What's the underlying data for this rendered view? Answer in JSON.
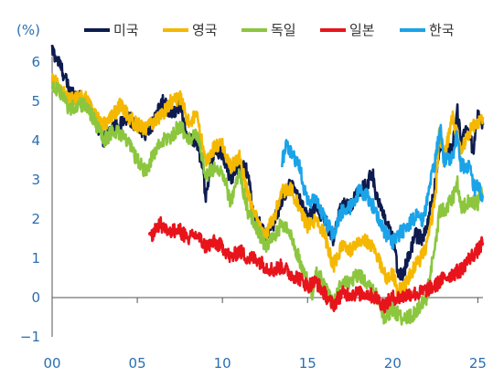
{
  "chart_data": {
    "type": "line",
    "unit_label": "(%)",
    "xlim": [
      2000,
      2025.3
    ],
    "ylim": [
      -1,
      6
    ],
    "x_ticks": [
      {
        "value": 2000,
        "label": "00"
      },
      {
        "value": 2005,
        "label": "05"
      },
      {
        "value": 2010,
        "label": "10"
      },
      {
        "value": 2015,
        "label": "15"
      },
      {
        "value": 2020,
        "label": "20"
      },
      {
        "value": 2025,
        "label": "25"
      }
    ],
    "y_ticks": [
      -1,
      0,
      1,
      2,
      3,
      4,
      5,
      6
    ],
    "grid": false,
    "legend_position": "top",
    "series": [
      {
        "name": "미국",
        "color": "#0d1b4f",
        "points": [
          [
            2000,
            6.3
          ],
          [
            2000.5,
            5.9
          ],
          [
            2001,
            5.3
          ],
          [
            2001.5,
            5.1
          ],
          [
            2002,
            5.0
          ],
          [
            2002.5,
            4.6
          ],
          [
            2003,
            4.0
          ],
          [
            2003.5,
            4.3
          ],
          [
            2004,
            4.4
          ],
          [
            2004.5,
            4.6
          ],
          [
            2005,
            4.3
          ],
          [
            2005.5,
            4.2
          ],
          [
            2006,
            4.5
          ],
          [
            2006.5,
            5.0
          ],
          [
            2007,
            4.7
          ],
          [
            2007.5,
            4.9
          ],
          [
            2008,
            4.0
          ],
          [
            2008.5,
            4.0
          ],
          [
            2008.9,
            3.2
          ],
          [
            2009,
            2.5
          ],
          [
            2009.3,
            3.3
          ],
          [
            2009.5,
            3.7
          ],
          [
            2010,
            3.7
          ],
          [
            2010.5,
            3.0
          ],
          [
            2011,
            3.4
          ],
          [
            2011.5,
            3.2
          ],
          [
            2011.8,
            2.1
          ],
          [
            2012,
            2.0
          ],
          [
            2012.5,
            1.6
          ],
          [
            2013,
            1.9
          ],
          [
            2013.5,
            2.5
          ],
          [
            2014,
            2.9
          ],
          [
            2014.5,
            2.5
          ],
          [
            2015,
            2.0
          ],
          [
            2015.5,
            2.3
          ],
          [
            2016,
            2.0
          ],
          [
            2016.5,
            1.5
          ],
          [
            2017,
            2.4
          ],
          [
            2017.5,
            2.3
          ],
          [
            2018,
            2.7
          ],
          [
            2018.5,
            2.9
          ],
          [
            2018.8,
            3.2
          ],
          [
            2019,
            2.7
          ],
          [
            2019.5,
            2.0
          ],
          [
            2019.8,
            1.7
          ],
          [
            2020,
            1.5
          ],
          [
            2020.3,
            0.7
          ],
          [
            2020.6,
            0.6
          ],
          [
            2021,
            1.1
          ],
          [
            2021.3,
            1.6
          ],
          [
            2021.8,
            1.5
          ],
          [
            2022,
            1.8
          ],
          [
            2022.5,
            2.9
          ],
          [
            2022.8,
            4.0
          ],
          [
            2023,
            3.6
          ],
          [
            2023.5,
            3.8
          ],
          [
            2023.8,
            4.8
          ],
          [
            2024,
            4.0
          ],
          [
            2024.5,
            4.3
          ],
          [
            2024.7,
            3.7
          ],
          [
            2025,
            4.6
          ],
          [
            2025.3,
            4.4
          ]
        ]
      },
      {
        "name": "영국",
        "color": "#f5b800",
        "points": [
          [
            2000,
            5.6
          ],
          [
            2000.5,
            5.3
          ],
          [
            2001,
            5.0
          ],
          [
            2001.5,
            5.1
          ],
          [
            2002,
            5.1
          ],
          [
            2002.5,
            4.7
          ],
          [
            2003,
            4.4
          ],
          [
            2003.5,
            4.6
          ],
          [
            2004,
            4.9
          ],
          [
            2004.5,
            4.6
          ],
          [
            2005,
            4.4
          ],
          [
            2005.5,
            4.3
          ],
          [
            2006,
            4.5
          ],
          [
            2006.5,
            4.7
          ],
          [
            2007,
            5.0
          ],
          [
            2007.5,
            5.1
          ],
          [
            2008,
            4.5
          ],
          [
            2008.5,
            4.6
          ],
          [
            2009,
            3.5
          ],
          [
            2009.5,
            3.8
          ],
          [
            2010,
            3.9
          ],
          [
            2010.5,
            3.3
          ],
          [
            2011,
            3.6
          ],
          [
            2011.5,
            2.6
          ],
          [
            2012,
            2.0
          ],
          [
            2012.5,
            1.6
          ],
          [
            2013,
            2.0
          ],
          [
            2013.5,
            2.7
          ],
          [
            2014,
            2.8
          ],
          [
            2014.5,
            2.3
          ],
          [
            2015,
            1.8
          ],
          [
            2015.5,
            2.0
          ],
          [
            2016,
            1.6
          ],
          [
            2016.5,
            0.8
          ],
          [
            2017,
            1.3
          ],
          [
            2017.5,
            1.2
          ],
          [
            2018,
            1.5
          ],
          [
            2018.5,
            1.4
          ],
          [
            2019,
            1.2
          ],
          [
            2019.6,
            0.5
          ],
          [
            2020,
            0.6
          ],
          [
            2020.3,
            0.2
          ],
          [
            2020.6,
            0.2
          ],
          [
            2021,
            0.6
          ],
          [
            2021.5,
            0.9
          ],
          [
            2022,
            1.3
          ],
          [
            2022.5,
            2.5
          ],
          [
            2022.75,
            4.3
          ],
          [
            2023,
            3.5
          ],
          [
            2023.5,
            4.6
          ],
          [
            2024,
            3.8
          ],
          [
            2024.5,
            4.2
          ],
          [
            2025,
            4.5
          ],
          [
            2025.3,
            4.6
          ]
        ]
      },
      {
        "name": "독일",
        "color": "#8cc63f",
        "points": [
          [
            2000,
            5.4
          ],
          [
            2000.5,
            5.2
          ],
          [
            2001,
            4.8
          ],
          [
            2001.5,
            4.9
          ],
          [
            2002,
            4.9
          ],
          [
            2002.5,
            4.5
          ],
          [
            2003,
            4.0
          ],
          [
            2003.5,
            4.2
          ],
          [
            2004,
            4.2
          ],
          [
            2004.5,
            3.9
          ],
          [
            2005,
            3.5
          ],
          [
            2005.5,
            3.2
          ],
          [
            2006,
            3.7
          ],
          [
            2006.5,
            4.0
          ],
          [
            2007,
            4.1
          ],
          [
            2007.5,
            4.4
          ],
          [
            2008,
            4.0
          ],
          [
            2008.5,
            4.2
          ],
          [
            2009,
            3.1
          ],
          [
            2009.5,
            3.3
          ],
          [
            2010,
            3.2
          ],
          [
            2010.5,
            2.4
          ],
          [
            2011,
            3.2
          ],
          [
            2011.5,
            2.2
          ],
          [
            2012,
            1.8
          ],
          [
            2012.5,
            1.3
          ],
          [
            2013,
            1.5
          ],
          [
            2013.5,
            1.9
          ],
          [
            2014,
            1.6
          ],
          [
            2014.5,
            1.0
          ],
          [
            2015,
            0.4
          ],
          [
            2015.3,
            0.1
          ],
          [
            2015.5,
            0.7
          ],
          [
            2016,
            0.3
          ],
          [
            2016.5,
            -0.2
          ],
          [
            2017,
            0.4
          ],
          [
            2017.5,
            0.4
          ],
          [
            2018,
            0.6
          ],
          [
            2018.5,
            0.3
          ],
          [
            2019,
            0.1
          ],
          [
            2019.5,
            -0.5
          ],
          [
            2020,
            -0.3
          ],
          [
            2020.5,
            -0.5
          ],
          [
            2021,
            -0.5
          ],
          [
            2021.5,
            -0.3
          ],
          [
            2022,
            0.0
          ],
          [
            2022.5,
            1.4
          ],
          [
            2022.8,
            2.3
          ],
          [
            2023,
            2.2
          ],
          [
            2023.5,
            2.5
          ],
          [
            2023.8,
            2.9
          ],
          [
            2024,
            2.2
          ],
          [
            2024.5,
            2.5
          ],
          [
            2025,
            2.4
          ],
          [
            2025.2,
            2.9
          ],
          [
            2025.3,
            2.6
          ]
        ]
      },
      {
        "name": "일본",
        "color": "#e8141c",
        "points": [
          [
            2005.7,
            1.5
          ],
          [
            2006,
            1.7
          ],
          [
            2006.3,
            1.9
          ],
          [
            2006.5,
            1.8
          ],
          [
            2007,
            1.7
          ],
          [
            2007.5,
            1.7
          ],
          [
            2008,
            1.5
          ],
          [
            2008.5,
            1.6
          ],
          [
            2009,
            1.3
          ],
          [
            2009.5,
            1.4
          ],
          [
            2010,
            1.3
          ],
          [
            2010.5,
            1.0
          ],
          [
            2011,
            1.2
          ],
          [
            2011.5,
            1.0
          ],
          [
            2012,
            1.0
          ],
          [
            2012.5,
            0.8
          ],
          [
            2013,
            0.7
          ],
          [
            2013.5,
            0.8
          ],
          [
            2014,
            0.6
          ],
          [
            2014.5,
            0.5
          ],
          [
            2015,
            0.3
          ],
          [
            2015.5,
            0.4
          ],
          [
            2016,
            0.1
          ],
          [
            2016.5,
            -0.2
          ],
          [
            2017,
            0.1
          ],
          [
            2017.5,
            0.1
          ],
          [
            2018,
            0.1
          ],
          [
            2018.5,
            0.1
          ],
          [
            2019,
            0.0
          ],
          [
            2019.5,
            -0.2
          ],
          [
            2020,
            0.0
          ],
          [
            2020.5,
            0.0
          ],
          [
            2021,
            0.1
          ],
          [
            2021.5,
            0.1
          ],
          [
            2022,
            0.2
          ],
          [
            2022.5,
            0.3
          ],
          [
            2023,
            0.5
          ],
          [
            2023.5,
            0.6
          ],
          [
            2024,
            0.7
          ],
          [
            2024.5,
            1.0
          ],
          [
            2025,
            1.2
          ],
          [
            2025.3,
            1.4
          ]
        ]
      },
      {
        "name": "한국",
        "color": "#1aa3e8",
        "points": [
          [
            2013.5,
            3.5
          ],
          [
            2013.8,
            3.9
          ],
          [
            2014,
            3.7
          ],
          [
            2014.5,
            3.4
          ],
          [
            2015,
            2.4
          ],
          [
            2015.5,
            2.5
          ],
          [
            2016,
            2.0
          ],
          [
            2016.5,
            1.6
          ],
          [
            2017,
            2.2
          ],
          [
            2017.5,
            2.3
          ],
          [
            2018,
            2.7
          ],
          [
            2018.5,
            2.6
          ],
          [
            2019,
            2.2
          ],
          [
            2019.5,
            1.7
          ],
          [
            2020,
            1.4
          ],
          [
            2020.3,
            1.6
          ],
          [
            2020.6,
            1.7
          ],
          [
            2021,
            1.9
          ],
          [
            2021.5,
            2.1
          ],
          [
            2021.8,
            1.9
          ],
          [
            2022,
            2.5
          ],
          [
            2022.5,
            3.5
          ],
          [
            2022.8,
            4.4
          ],
          [
            2023,
            3.5
          ],
          [
            2023.5,
            3.6
          ],
          [
            2023.8,
            4.2
          ],
          [
            2024,
            3.4
          ],
          [
            2024.5,
            3.3
          ],
          [
            2024.8,
            2.8
          ],
          [
            2025,
            2.8
          ],
          [
            2025.3,
            2.6
          ]
        ]
      }
    ]
  }
}
